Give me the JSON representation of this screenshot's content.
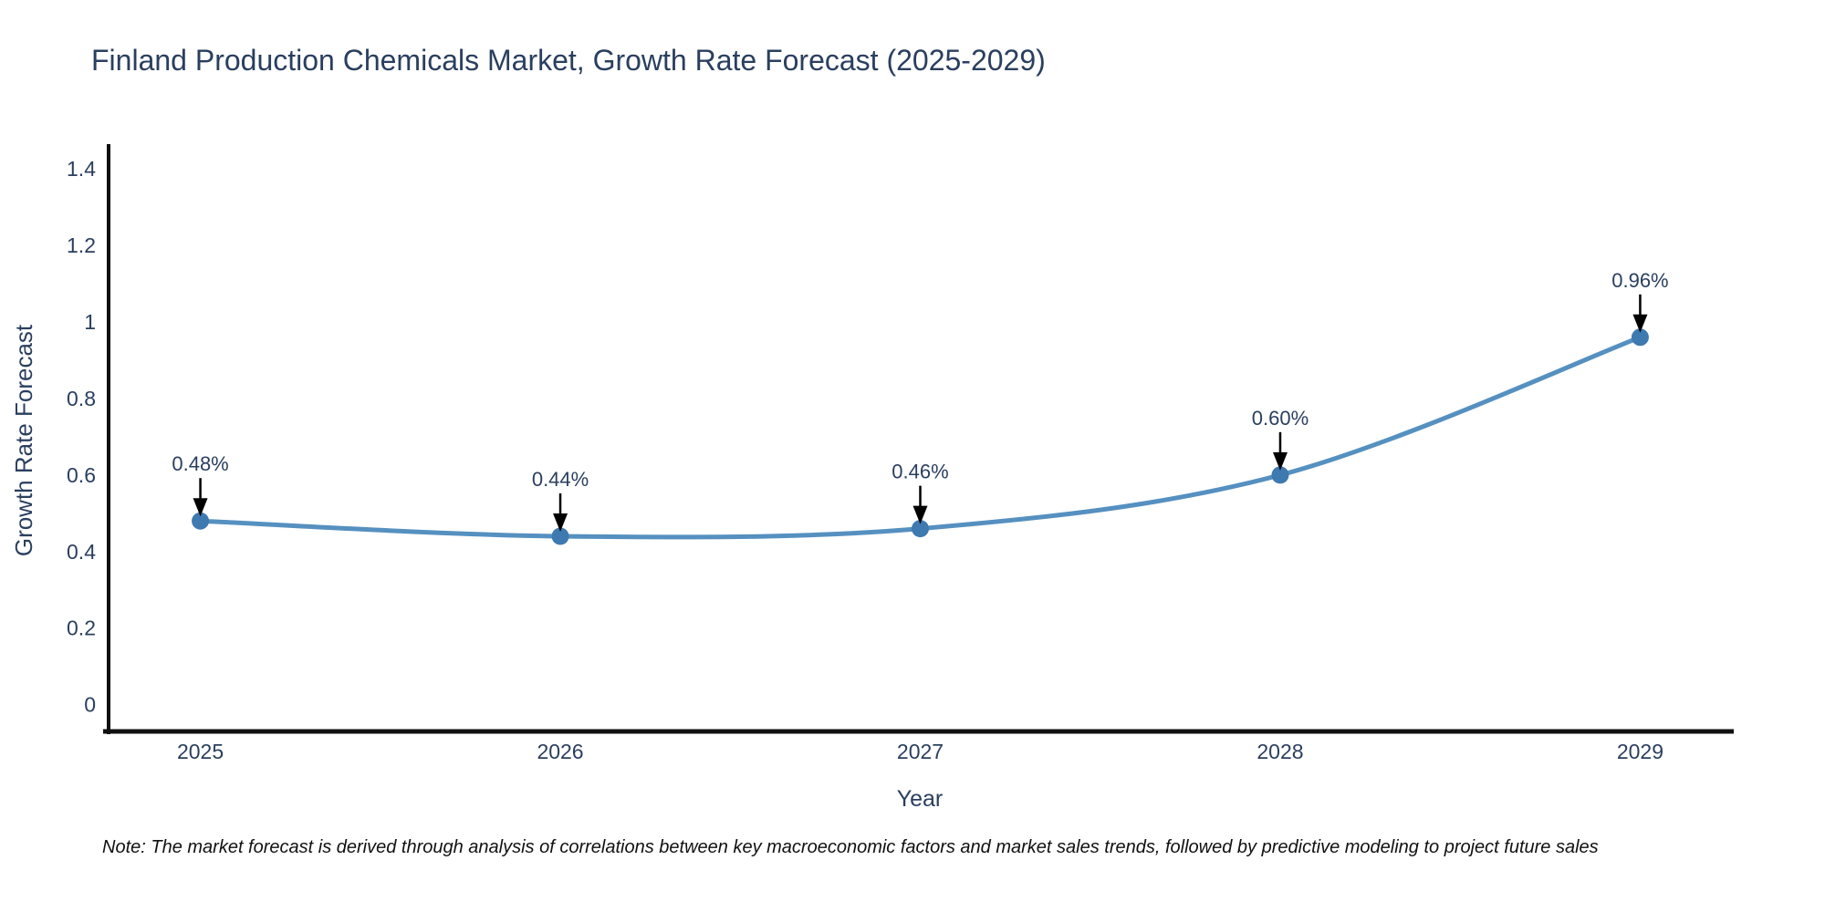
{
  "title": "Finland Production Chemicals Market, Growth Rate Forecast (2025-2029)",
  "note": "Note: The market forecast is derived through analysis of correlations between key macroeconomic factors and market sales trends, followed by predictive modeling to project future sales",
  "chart_data": {
    "type": "line",
    "title": "Finland Production Chemicals Market, Growth Rate Forecast (2025-2029)",
    "xlabel": "Year",
    "ylabel": "Growth Rate Forecast",
    "x": [
      2025,
      2026,
      2027,
      2028,
      2029
    ],
    "values": [
      0.48,
      0.44,
      0.46,
      0.6,
      0.96
    ],
    "point_labels": [
      "0.48%",
      "0.44%",
      "0.46%",
      "0.60%",
      "0.96%"
    ],
    "xtick_labels": [
      "2025",
      "2026",
      "2027",
      "2028",
      "2029"
    ],
    "yticks": [
      0,
      0.2,
      0.4,
      0.6,
      0.8,
      1,
      1.2,
      1.4
    ],
    "ytick_labels": [
      "0",
      "0.2",
      "0.4",
      "0.6",
      "0.8",
      "1",
      "1.2",
      "1.4"
    ],
    "xlim": [
      2024.74,
      2029.26
    ],
    "ylim": [
      -0.07,
      1.46
    ],
    "grid": false,
    "line_shape": "spline",
    "legend": "none",
    "colors": {
      "line": "#5590c0",
      "marker": "#3e79b0",
      "axis": "#111111",
      "text": "#2a3f5f",
      "annotation": "#2a3f5f",
      "arrow": "#000000",
      "background": "#ffffff"
    }
  }
}
